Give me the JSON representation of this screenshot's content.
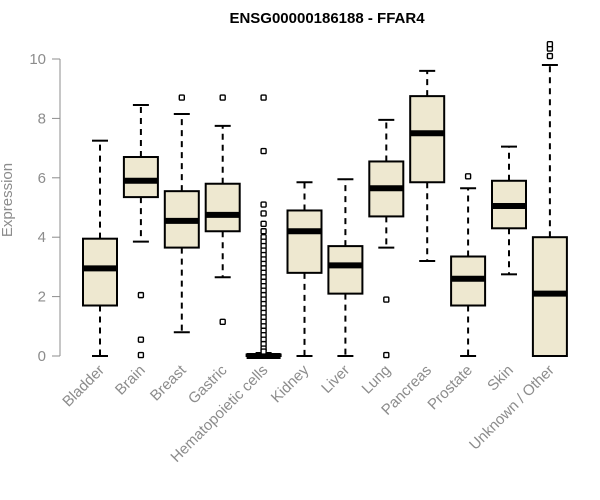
{
  "chart_data": {
    "type": "boxplot",
    "title": "ENSG00000186188 - FFAR4",
    "xlabel": "",
    "ylabel": "Expression",
    "ylim": [
      0,
      10
    ],
    "yticks": [
      0,
      2,
      4,
      6,
      8,
      10
    ],
    "box_fill": "#eee8d0",
    "categories": [
      "Bladder",
      "Brain",
      "Breast",
      "Gastric",
      "Hematopoietic cells",
      "Kidney",
      "Liver",
      "Lung",
      "Pancreas",
      "Prostate",
      "Skin",
      "Unknown / Other"
    ],
    "boxes": [
      {
        "name": "Bladder",
        "whislo": 0.0,
        "q1": 1.7,
        "median": 2.95,
        "q3": 3.95,
        "whishi": 7.25,
        "outliers": []
      },
      {
        "name": "Brain",
        "whislo": 3.85,
        "q1": 5.35,
        "median": 5.9,
        "q3": 6.7,
        "whishi": 8.45,
        "outliers": [
          2.05,
          0.55,
          0.03
        ]
      },
      {
        "name": "Breast",
        "whislo": 0.8,
        "q1": 3.65,
        "median": 4.55,
        "q3": 5.55,
        "whishi": 8.15,
        "outliers": [
          8.7
        ]
      },
      {
        "name": "Gastric",
        "whislo": 2.65,
        "q1": 4.2,
        "median": 4.75,
        "q3": 5.8,
        "whishi": 7.75,
        "outliers": [
          8.7,
          1.15
        ]
      },
      {
        "name": "Hematopoietic cells",
        "whislo": 0.0,
        "q1": 0.0,
        "median": 0.0,
        "q3": 0.05,
        "whishi": 0.1,
        "outliers": [
          8.7,
          6.9,
          5.1,
          4.8,
          4.45,
          4.2,
          4.0,
          3.85,
          3.7,
          3.55,
          3.4,
          3.25,
          3.1,
          2.95,
          2.8,
          2.65,
          2.5,
          2.35,
          2.2,
          2.05,
          1.9,
          1.75,
          1.6,
          1.45,
          1.3,
          1.15,
          1.0,
          0.85,
          0.7,
          0.55,
          0.4,
          0.25,
          0.15
        ]
      },
      {
        "name": "Kidney",
        "whislo": 0.0,
        "q1": 2.8,
        "median": 4.2,
        "q3": 4.9,
        "whishi": 5.85,
        "outliers": []
      },
      {
        "name": "Liver",
        "whislo": 0.0,
        "q1": 2.1,
        "median": 3.05,
        "q3": 3.7,
        "whishi": 5.95,
        "outliers": []
      },
      {
        "name": "Lung",
        "whislo": 3.65,
        "q1": 4.7,
        "median": 5.65,
        "q3": 6.55,
        "whishi": 7.95,
        "outliers": [
          1.9,
          0.03
        ]
      },
      {
        "name": "Pancreas",
        "whislo": 3.2,
        "q1": 5.85,
        "median": 7.5,
        "q3": 8.75,
        "whishi": 9.6,
        "outliers": []
      },
      {
        "name": "Prostate",
        "whislo": 0.0,
        "q1": 1.7,
        "median": 2.6,
        "q3": 3.35,
        "whishi": 5.65,
        "outliers": [
          6.05
        ]
      },
      {
        "name": "Skin",
        "whislo": 2.75,
        "q1": 4.3,
        "median": 5.05,
        "q3": 5.9,
        "whishi": 7.05,
        "outliers": []
      },
      {
        "name": "Unknown / Other",
        "whislo": 0.0,
        "q1": 0.0,
        "median": 2.1,
        "q3": 4.0,
        "whishi": 9.8,
        "outliers": [
          10.1,
          10.35,
          10.5
        ]
      }
    ]
  }
}
